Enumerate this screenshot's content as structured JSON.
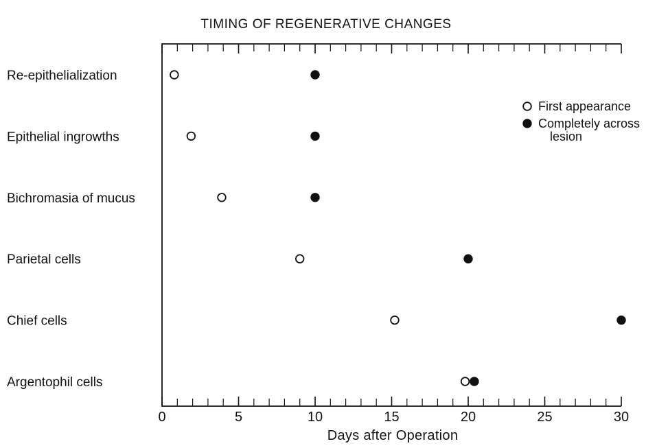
{
  "chart_data": {
    "type": "scatter",
    "title": "TIMING OF REGENERATIVE CHANGES",
    "xlabel": "Days after Operation",
    "ylabel": "",
    "xlim": [
      0,
      30
    ],
    "xticks": [
      0,
      5,
      10,
      15,
      20,
      25,
      30
    ],
    "minor_tick_step": 1,
    "grid": false,
    "legend_position": "top-right",
    "categories": [
      "Re-epithelialization",
      "Epithelial ingrowths",
      "Bichromasia of mucus",
      "Parietal cells",
      "Chief cells",
      "Argentophil cells"
    ],
    "series": [
      {
        "name": "First appearance",
        "marker": "open-circle",
        "values": [
          0.8,
          1.9,
          3.9,
          9.0,
          15.2,
          19.8
        ]
      },
      {
        "name": "Completely across lesion",
        "marker": "filled-circle",
        "values": [
          10.0,
          10.0,
          10.0,
          20.0,
          30.0,
          20.4
        ]
      }
    ],
    "colors": {
      "ink": "#111111",
      "background": "#ffffff"
    }
  }
}
